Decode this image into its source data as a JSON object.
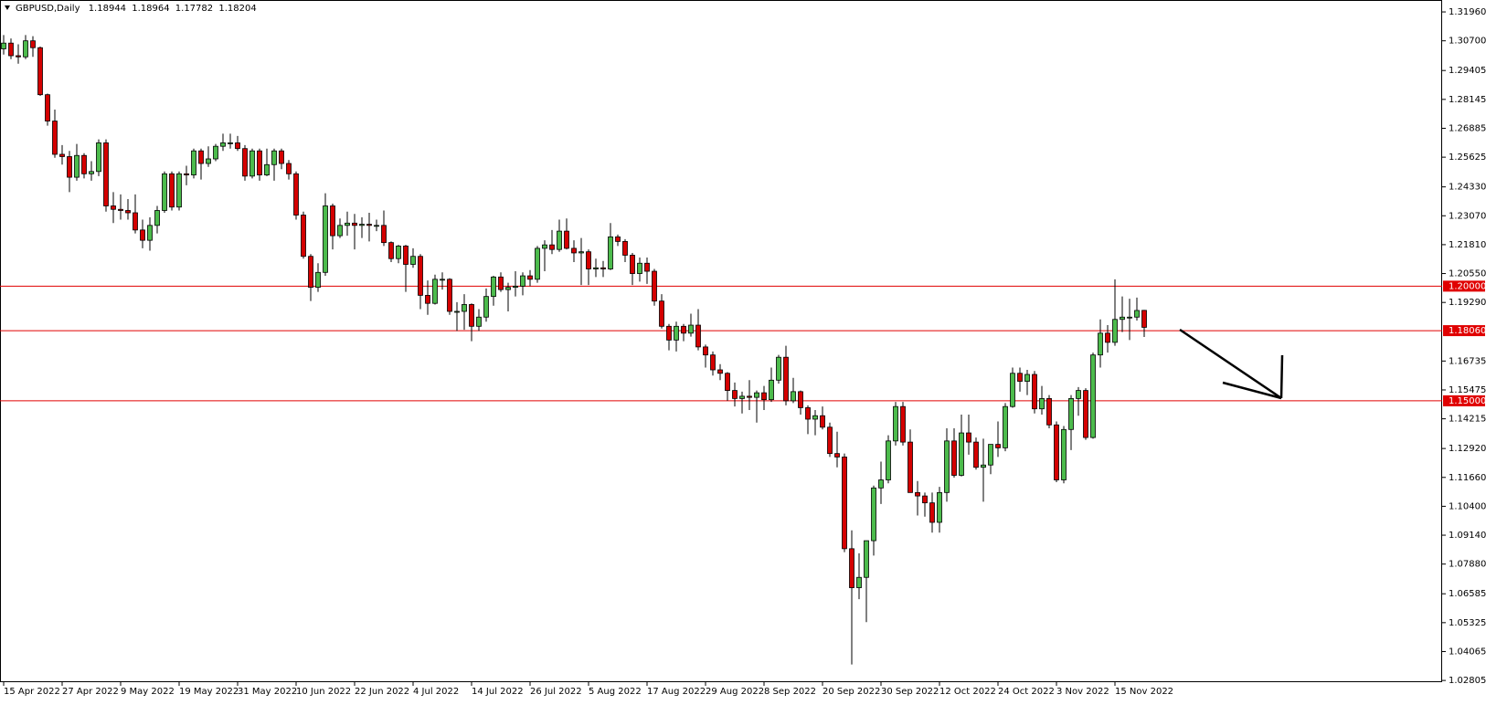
{
  "chart_data": {
    "type": "candlestick",
    "title": "GBPUSD,Daily",
    "categories": [
      "15 Apr 2022",
      null,
      null,
      null,
      null,
      null,
      null,
      null,
      "27 Apr 2022",
      null,
      null,
      null,
      null,
      null,
      null,
      null,
      "9 May 2022",
      null,
      null,
      null,
      null,
      null,
      null,
      null,
      "19 May 2022",
      null,
      null,
      null,
      null,
      null,
      null,
      null,
      "31 May 2022",
      null,
      null,
      null,
      null,
      null,
      null,
      null,
      "10 Jun 2022",
      null,
      null,
      null,
      null,
      null,
      null,
      null,
      "22 Jun 2022",
      null,
      null,
      null,
      null,
      null,
      null,
      null,
      "4 Jul 2022",
      null,
      null,
      null,
      null,
      null,
      null,
      null,
      "14 Jul 2022",
      null,
      null,
      null,
      null,
      null,
      null,
      null,
      "26 Jul 2022",
      null,
      null,
      null,
      null,
      null,
      null,
      null,
      "5 Aug 2022",
      null,
      null,
      null,
      null,
      null,
      null,
      null,
      "17 Aug 2022",
      null,
      null,
      null,
      null,
      null,
      null,
      null,
      "29 Aug 2022",
      null,
      null,
      null,
      null,
      null,
      null,
      null,
      "8 Sep 2022",
      null,
      null,
      null,
      null,
      null,
      null,
      null,
      "20 Sep 2022",
      null,
      null,
      null,
      null,
      null,
      null,
      null,
      "30 Sep 2022",
      null,
      null,
      null,
      null,
      null,
      null,
      null,
      "12 Oct 2022",
      null,
      null,
      null,
      null,
      null,
      null,
      null,
      "24 Oct 2022",
      null,
      null,
      null,
      null,
      null,
      null,
      null,
      "3 Nov 2022",
      null,
      null,
      null,
      null,
      null,
      null,
      null,
      "15 Nov 2022",
      null,
      null,
      null,
      null
    ],
    "open": [
      1.3035,
      1.306,
      1.3005,
      1.3,
      1.307,
      1.304,
      1.2835,
      1.272,
      1.2575,
      1.2565,
      1.2475,
      1.257,
      1.249,
      1.25,
      1.2625,
      1.235,
      1.2335,
      1.233,
      1.232,
      1.2245,
      1.22,
      1.2265,
      1.233,
      1.249,
      1.2345,
      1.249,
      1.2485,
      1.259,
      1.2535,
      1.2555,
      1.261,
      1.2625,
      1.2625,
      1.26,
      1.248,
      1.259,
      1.2485,
      1.253,
      1.259,
      1.2535,
      1.249,
      1.231,
      1.213,
      1.1995,
      1.206,
      1.235,
      1.222,
      1.2265,
      1.2275,
      1.2265,
      1.227,
      1.2265,
      1.2265,
      1.219,
      1.212,
      1.2175,
      1.2095,
      1.213,
      1.196,
      1.1925,
      1.203,
      1.203,
      1.189,
      1.189,
      1.192,
      1.1825,
      1.1865,
      1.1955,
      1.204,
      1.1985,
      1.1995,
      1.2,
      1.2045,
      1.203,
      1.2165,
      1.218,
      1.216,
      1.224,
      1.2165,
      1.2145,
      1.215,
      1.2075,
      1.208,
      1.2075,
      1.2215,
      1.2195,
      1.2135,
      1.2055,
      1.21,
      1.2065,
      1.1935,
      1.1825,
      1.1765,
      1.1825,
      1.1795,
      1.183,
      1.1735,
      1.17,
      1.1635,
      1.162,
      1.1545,
      1.151,
      1.152,
      1.1515,
      1.1535,
      1.1505,
      1.159,
      1.169,
      1.15,
      1.154,
      1.147,
      1.142,
      1.1435,
      1.1385,
      1.127,
      1.1255,
      1.0855,
      1.0685,
      1.073,
      1.089,
      1.112,
      1.1155,
      1.1325,
      1.1475,
      1.132,
      1.11,
      1.1085,
      1.1055,
      1.097,
      1.11,
      1.1325,
      1.1175,
      1.136,
      1.132,
      1.121,
      1.122,
      1.131,
      1.1295,
      1.1475,
      1.162,
      1.1585,
      1.1615,
      1.1465,
      1.151,
      1.1395,
      1.1155,
      1.1375,
      1.151,
      1.1545,
      1.134,
      1.17,
      1.1795,
      1.1755,
      1.1855,
      1.1865,
      1.1865,
      1.18944
    ],
    "high": [
      1.3095,
      1.308,
      1.3055,
      1.3095,
      1.309,
      1.3045,
      1.284,
      1.277,
      1.2615,
      1.259,
      1.262,
      1.258,
      1.2545,
      1.264,
      1.264,
      1.241,
      1.24,
      1.238,
      1.24,
      1.229,
      1.23,
      1.235,
      1.25,
      1.25,
      1.25,
      1.2525,
      1.26,
      1.26,
      1.261,
      1.262,
      1.2665,
      1.2665,
      1.2655,
      1.2615,
      1.26,
      1.26,
      1.26,
      1.26,
      1.26,
      1.255,
      1.25,
      1.2325,
      1.214,
      1.21,
      1.2405,
      1.236,
      1.2295,
      1.2325,
      1.2315,
      1.23,
      1.232,
      1.229,
      1.233,
      1.2195,
      1.218,
      1.218,
      1.2165,
      1.214,
      1.2025,
      1.205,
      1.206,
      1.2035,
      1.193,
      1.1965,
      1.1925,
      1.19,
      1.199,
      1.2045,
      1.206,
      1.2015,
      1.2065,
      1.206,
      1.207,
      1.2175,
      1.22,
      1.2245,
      1.229,
      1.2295,
      1.22,
      1.221,
      1.216,
      1.212,
      1.211,
      1.2275,
      1.2225,
      1.2205,
      1.2145,
      1.2125,
      1.2125,
      1.2075,
      1.1965,
      1.1835,
      1.1845,
      1.1835,
      1.188,
      1.19,
      1.1745,
      1.1715,
      1.166,
      1.1625,
      1.158,
      1.154,
      1.159,
      1.1545,
      1.1565,
      1.1645,
      1.17,
      1.174,
      1.16,
      1.1545,
      1.148,
      1.146,
      1.1475,
      1.1405,
      1.1365,
      1.127,
      1.0935,
      1.0835,
      1.089,
      1.113,
      1.1235,
      1.135,
      1.1495,
      1.1495,
      1.1375,
      1.115,
      1.11,
      1.11,
      1.1125,
      1.138,
      1.138,
      1.144,
      1.144,
      1.134,
      1.1335,
      1.131,
      1.141,
      1.149,
      1.1645,
      1.1645,
      1.1635,
      1.163,
      1.1565,
      1.1525,
      1.141,
      1.139,
      1.1525,
      1.156,
      1.1555,
      1.171,
      1.1855,
      1.183,
      1.203,
      1.1955,
      1.1945,
      1.195,
      1.18964
    ],
    "low": [
      1.301,
      1.299,
      1.297,
      1.299,
      1.3,
      1.283,
      1.27,
      1.256,
      1.253,
      1.241,
      1.246,
      1.247,
      1.246,
      1.248,
      1.2325,
      1.2275,
      1.229,
      1.229,
      1.223,
      1.2165,
      1.2155,
      1.223,
      1.232,
      1.233,
      1.233,
      1.244,
      1.247,
      1.2465,
      1.252,
      1.2545,
      1.259,
      1.26,
      1.259,
      1.246,
      1.247,
      1.246,
      1.248,
      1.246,
      1.251,
      1.2465,
      1.229,
      1.212,
      1.1935,
      1.1975,
      1.2045,
      1.216,
      1.221,
      1.222,
      1.216,
      1.221,
      1.2195,
      1.224,
      1.2175,
      1.2105,
      1.21,
      1.1975,
      1.208,
      1.19,
      1.1875,
      1.192,
      1.1985,
      1.1875,
      1.1805,
      1.181,
      1.176,
      1.1805,
      1.1845,
      1.1915,
      1.1975,
      1.189,
      1.1955,
      1.196,
      1.2,
      1.2015,
      1.2065,
      1.214,
      1.215,
      1.216,
      1.2105,
      1.2005,
      1.2005,
      1.204,
      1.204,
      1.207,
      1.2175,
      1.2105,
      1.2005,
      1.202,
      1.201,
      1.1915,
      1.1815,
      1.172,
      1.1715,
      1.176,
      1.178,
      1.172,
      1.1645,
      1.161,
      1.159,
      1.15,
      1.1475,
      1.1445,
      1.146,
      1.1405,
      1.146,
      1.1495,
      1.1575,
      1.148,
      1.149,
      1.144,
      1.1355,
      1.135,
      1.1375,
      1.1255,
      1.121,
      1.084,
      1.035,
      1.0635,
      1.0535,
      1.0825,
      1.105,
      1.114,
      1.1305,
      1.1305,
      1.11,
      1.1,
      1.0995,
      1.0925,
      1.0925,
      1.106,
      1.1165,
      1.117,
      1.1265,
      1.12,
      1.106,
      1.118,
      1.1255,
      1.128,
      1.147,
      1.154,
      1.1525,
      1.1445,
      1.144,
      1.138,
      1.1145,
      1.114,
      1.1285,
      1.1435,
      1.133,
      1.1335,
      1.1645,
      1.171,
      1.174,
      1.18,
      1.1765,
      1.185,
      1.17782
    ],
    "close": [
      1.306,
      1.3005,
      1.3,
      1.307,
      1.304,
      1.2835,
      1.272,
      1.2575,
      1.2565,
      1.2475,
      1.257,
      1.249,
      1.25,
      1.2625,
      1.235,
      1.2335,
      1.233,
      1.232,
      1.2245,
      1.22,
      1.2265,
      1.233,
      1.249,
      1.2345,
      1.249,
      1.2485,
      1.259,
      1.2535,
      1.2555,
      1.261,
      1.2625,
      1.2625,
      1.26,
      1.248,
      1.259,
      1.2485,
      1.253,
      1.259,
      1.2535,
      1.249,
      1.231,
      1.213,
      1.1995,
      1.206,
      1.235,
      1.222,
      1.2265,
      1.2275,
      1.2265,
      1.227,
      1.2265,
      1.2265,
      1.219,
      1.212,
      1.2175,
      1.2095,
      1.213,
      1.196,
      1.1925,
      1.203,
      1.203,
      1.189,
      1.189,
      1.192,
      1.1825,
      1.1865,
      1.1955,
      1.204,
      1.1985,
      1.1995,
      1.2,
      1.2045,
      1.203,
      1.2165,
      1.218,
      1.216,
      1.224,
      1.2165,
      1.2145,
      1.215,
      1.2075,
      1.208,
      1.2075,
      1.2215,
      1.2195,
      1.2135,
      1.2055,
      1.21,
      1.2065,
      1.1935,
      1.1825,
      1.1765,
      1.1825,
      1.1795,
      1.183,
      1.1735,
      1.17,
      1.1635,
      1.162,
      1.1545,
      1.151,
      1.152,
      1.1515,
      1.1535,
      1.1505,
      1.159,
      1.169,
      1.15,
      1.154,
      1.147,
      1.142,
      1.1435,
      1.1385,
      1.127,
      1.1255,
      1.0855,
      1.0685,
      1.073,
      1.089,
      1.112,
      1.1155,
      1.1325,
      1.1475,
      1.132,
      1.11,
      1.1085,
      1.1055,
      1.097,
      1.11,
      1.1325,
      1.1175,
      1.136,
      1.132,
      1.121,
      1.122,
      1.131,
      1.1295,
      1.1475,
      1.162,
      1.1585,
      1.1615,
      1.1465,
      1.151,
      1.1395,
      1.1155,
      1.1375,
      1.151,
      1.1545,
      1.134,
      1.17,
      1.1795,
      1.1755,
      1.1855,
      1.1865,
      1.1865,
      1.1894,
      1.18204
    ],
    "up_color": "#4cbb4c",
    "down_color": "#d40000",
    "wick_color": "#000000",
    "ylim": [
      1.0273,
      1.324
    ],
    "yticks": [
      {
        "value": 1.3196,
        "label": "1.31960"
      },
      {
        "value": 1.307,
        "label": "1.30700"
      },
      1.29405,
      1.28145,
      1.26885,
      1.25625,
      {
        "value": 1.2433,
        "label": "1.24330"
      },
      {
        "value": 1.2307,
        "label": "1.23070"
      },
      {
        "value": 1.2181,
        "label": "1.21810"
      },
      {
        "value": 1.2055,
        "label": "1.20550"
      },
      {
        "value": 1.1929,
        "label": "1.19290"
      },
      1.16735,
      1.15475,
      1.14215,
      {
        "value": 1.1292,
        "label": "1.12920"
      },
      {
        "value": 1.1166,
        "label": "1.11660"
      },
      {
        "value": 1.104,
        "label": "1.10400"
      },
      {
        "value": 1.0914,
        "label": "1.09140"
      },
      {
        "value": 1.0788,
        "label": "1.07880"
      },
      1.06585,
      1.05325,
      1.04065,
      1.02805
    ],
    "levels": [
      {
        "value": 1.2,
        "label": "1.20000"
      },
      {
        "value": 1.1806,
        "label": "1.18060"
      },
      {
        "value": 1.15,
        "label": "1.15000"
      }
    ],
    "level_color": "#e00000",
    "grid": false
  }
}
